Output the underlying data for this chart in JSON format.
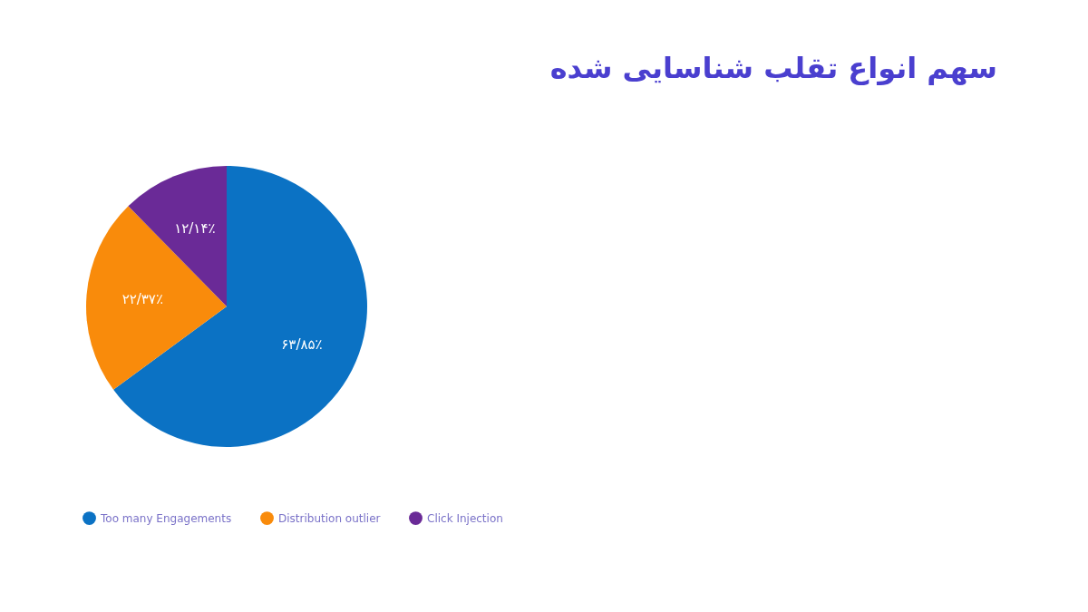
{
  "chart_data": {
    "type": "pie",
    "title": "سهم انواع تقلب شناسایی شده",
    "categories": [
      "Too many Engagements",
      "Distribution outlier",
      "Click Injection"
    ],
    "values": [
      63.85,
      22.37,
      12.14
    ],
    "value_labels": [
      "۶۳/۸۵٪",
      "۲۲/۳۷٪",
      "۱۲/۱۴٪"
    ],
    "colors": [
      "#0b72c4",
      "#f98b0b",
      "#6a2a97"
    ],
    "legend": "bottom"
  }
}
